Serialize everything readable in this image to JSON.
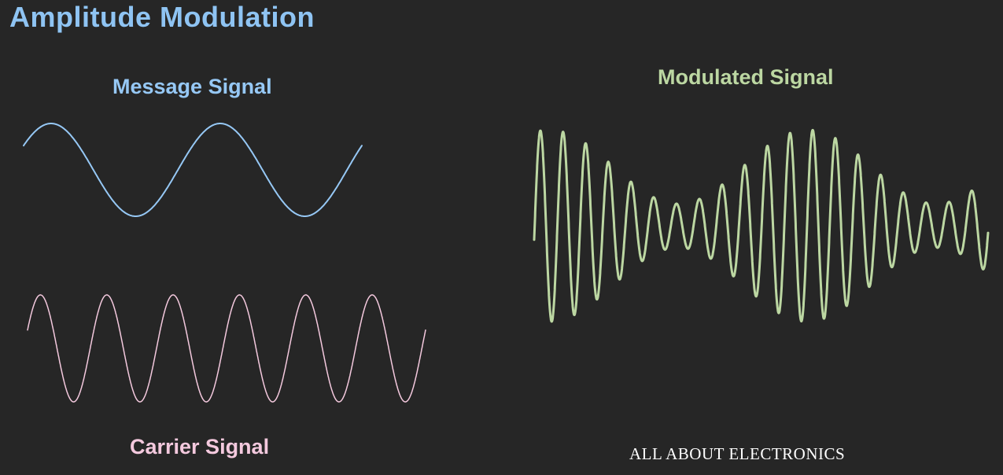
{
  "slide": {
    "title": "Amplitude  Modulation",
    "message_label": "Message Signal",
    "carrier_label": "Carrier Signal",
    "modulated_label": "Modulated Signal",
    "watermark": "ALL ABOUT ELECTRONICS"
  },
  "colors": {
    "background": "#262626",
    "title": "#8fc4f3",
    "message": "#96c8f5",
    "carrier": "#f4c9de",
    "modulated": "#bcd7a2",
    "watermark": "#ffffff"
  },
  "signals": {
    "message": {
      "cycles": 2
    },
    "carrier": {
      "cycles": 6
    },
    "modulated": {
      "carrier_cycles": 20,
      "envelope_cycles": 2
    }
  }
}
